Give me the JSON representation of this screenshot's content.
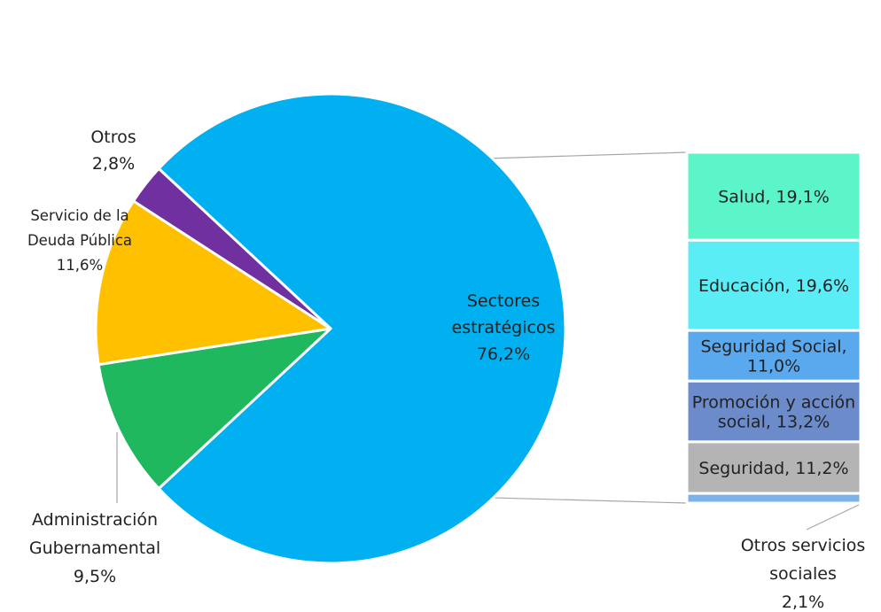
{
  "chart_data": {
    "type": "bar-of-pie",
    "title": "",
    "pie": {
      "slices": [
        {
          "label": "Sectores estratégicos",
          "label_lines": [
            "Sectores",
            "estratégicos"
          ],
          "value": 76.2,
          "value_text": "76,2%",
          "color": "#00B0F0"
        },
        {
          "label": "Administración Gubernamental",
          "label_lines": [
            "Administración",
            "Gubernamental"
          ],
          "value": 9.5,
          "value_text": "9,5%",
          "color": "#1FB85F"
        },
        {
          "label": "Servicio de la Deuda Pública",
          "label_lines": [
            "Servicio de la",
            "Deuda Pública"
          ],
          "value": 11.6,
          "value_text": "11,6%",
          "color": "#FFC000"
        },
        {
          "label": "Otros",
          "label_lines": [
            "Otros"
          ],
          "value": 2.8,
          "value_text": "2,8%",
          "color": "#7030A0"
        }
      ]
    },
    "bar": {
      "segments": [
        {
          "label": "Salud",
          "value": 19.1,
          "text_lines": [
            "Salud, 19,1%"
          ],
          "color": "#5CF5C9"
        },
        {
          "label": "Educación",
          "value": 19.6,
          "text_lines": [
            "Educación, 19,6%"
          ],
          "color": "#5BEDF5"
        },
        {
          "label": "Seguridad Social",
          "value": 11.0,
          "text_lines": [
            "Seguridad Social,",
            "11,0%"
          ],
          "color": "#5AA8EE"
        },
        {
          "label": "Promoción y acción social",
          "value": 13.2,
          "text_lines": [
            "Promoción y acción",
            "social, 13,2%"
          ],
          "color": "#6B8BCB"
        },
        {
          "label": "Seguridad",
          "value": 11.2,
          "text_lines": [
            "Seguridad, 11,2%"
          ],
          "color": "#B4B4B4"
        },
        {
          "label": "Otros servicios sociales",
          "value": 2.1,
          "text_lines": [
            "Otros servicios",
            "sociales",
            "2,1%"
          ],
          "color": "#7DB2E8"
        }
      ]
    }
  }
}
